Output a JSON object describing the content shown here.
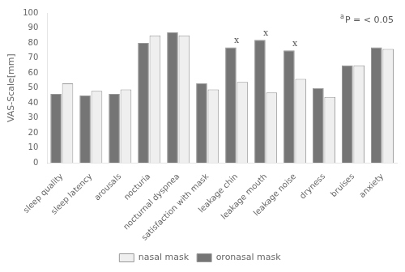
{
  "chart_data": {
    "type": "bar",
    "categories": [
      "sleep quality",
      "sleep latency",
      "arousals",
      "nocturia",
      "nocturnal dyspnea",
      "satisfaction with mask",
      "leakage chin",
      "leakage mouth",
      "leakage noise",
      "dryness",
      "bruises",
      "anxiety"
    ],
    "series": [
      {
        "name": "oronasal mask",
        "color": "#757575",
        "values": [
          46,
          45,
          46,
          80,
          87,
          53,
          77,
          82,
          75,
          50,
          65,
          77
        ]
      },
      {
        "name": "nasal mask",
        "color": "#efefef",
        "values": [
          53,
          48,
          49,
          85,
          85,
          49,
          54,
          47,
          56,
          44,
          65,
          76
        ]
      }
    ],
    "y_label": "VAS-Scale[mm]",
    "ylim": [
      0,
      100
    ],
    "yticks": [
      0,
      10,
      20,
      30,
      40,
      50,
      60,
      70,
      80,
      90,
      100
    ],
    "grid": false,
    "legend": "bottom",
    "annotations": [
      {
        "superscript": "a",
        "text": "P = < 0.05"
      },
      {
        "text": "x",
        "category": "leakage chin"
      },
      {
        "text": "x",
        "category": "leakage mouth"
      },
      {
        "text": "x",
        "category": "leakage noise"
      }
    ]
  }
}
